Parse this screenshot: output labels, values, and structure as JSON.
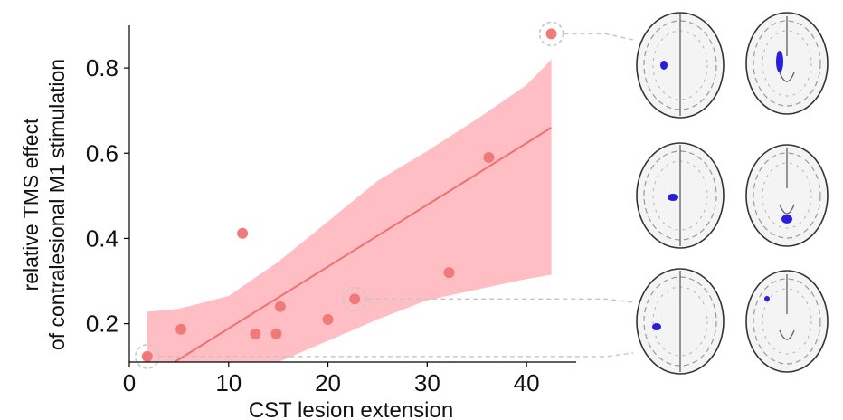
{
  "chart_data": {
    "type": "scatter",
    "title": "",
    "xlabel": "CST lesion extension",
    "ylabel_lines": [
      "relative TMS effect",
      "of contralesional M1 stimulation"
    ],
    "xlim": [
      0,
      45
    ],
    "ylim": [
      0.11,
      0.9
    ],
    "x_ticks": [
      0,
      10,
      20,
      30,
      40
    ],
    "x_tick_labels": [
      "0",
      "10",
      "20",
      "30",
      "40"
    ],
    "y_ticks": [
      0.2,
      0.4,
      0.6,
      0.8
    ],
    "y_tick_labels": [
      "0.2",
      "0.4",
      "0.6",
      "0.8"
    ],
    "grid": false,
    "points": [
      {
        "x": 1.8,
        "y": 0.123,
        "highlighted": true
      },
      {
        "x": 5.2,
        "y": 0.187,
        "highlighted": false
      },
      {
        "x": 11.4,
        "y": 0.412,
        "highlighted": false
      },
      {
        "x": 12.7,
        "y": 0.176,
        "highlighted": false
      },
      {
        "x": 14.8,
        "y": 0.176,
        "highlighted": false
      },
      {
        "x": 15.2,
        "y": 0.24,
        "highlighted": false
      },
      {
        "x": 20.0,
        "y": 0.21,
        "highlighted": false
      },
      {
        "x": 22.7,
        "y": 0.258,
        "highlighted": true
      },
      {
        "x": 32.2,
        "y": 0.32,
        "highlighted": false
      },
      {
        "x": 36.2,
        "y": 0.59,
        "highlighted": false
      },
      {
        "x": 42.5,
        "y": 0.88,
        "highlighted": true
      }
    ],
    "regression_line": [
      [
        1.8,
        0.07
      ],
      [
        42.5,
        0.66
      ]
    ],
    "confidence_band": {
      "x": [
        1.8,
        5,
        10,
        15,
        20,
        25,
        30,
        35,
        40,
        42.5
      ],
      "upper": [
        0.228,
        0.235,
        0.265,
        0.345,
        0.44,
        0.535,
        0.605,
        0.68,
        0.76,
        0.82
      ],
      "lower": [
        0.11,
        0.11,
        0.11,
        0.11,
        0.16,
        0.21,
        0.255,
        0.28,
        0.305,
        0.315
      ]
    },
    "colors": {
      "point": "#f07a7a",
      "line": "#ef7070",
      "band": "#ffb3b8",
      "highlight_ring": "#c8c8c8",
      "axis": "#000000",
      "scan_marker": "#2a1fd8"
    },
    "brain_panels": [
      {
        "point_index": 10,
        "views": [
          "axial",
          "coronal"
        ]
      },
      {
        "point_index": 7,
        "views": [
          "axial",
          "coronal"
        ]
      },
      {
        "point_index": 0,
        "views": [
          "axial",
          "coronal"
        ]
      }
    ]
  }
}
